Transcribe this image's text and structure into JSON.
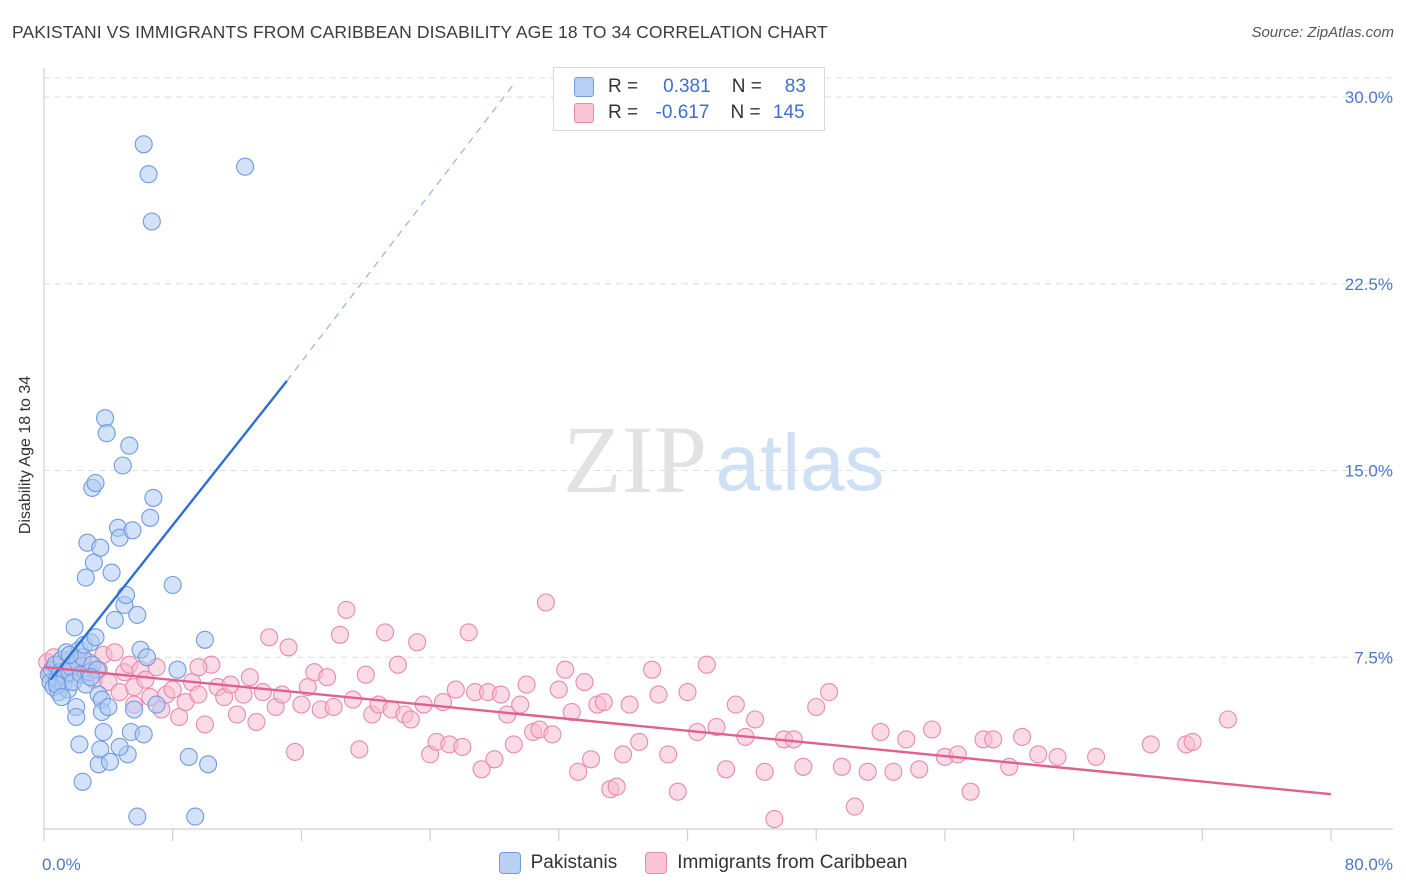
{
  "header": {
    "title": "PAKISTANI VS IMMIGRANTS FROM CARIBBEAN DISABILITY AGE 18 TO 34 CORRELATION CHART",
    "source": "Source: ZipAtlas.com"
  },
  "watermark": {
    "zip": "ZIP",
    "atlas": "atlas"
  },
  "colors": {
    "blue_fill": "#aecbf2",
    "blue_stroke": "#6f9be0",
    "blue_line": "#2f6fd1",
    "pink_fill": "#f6bcd0",
    "pink_stroke": "#e88aac",
    "pink_line": "#e0608e",
    "grid": "#dedede",
    "tick_text": "#4a77c9"
  },
  "legend": {
    "rows": [
      {
        "r_label": "R =",
        "r_value": "0.381",
        "n_label": "N =",
        "n_value": "83"
      },
      {
        "r_label": "R =",
        "r_value": "-0.617",
        "n_label": "N =",
        "n_value": "145"
      }
    ]
  },
  "chart_data": {
    "type": "scatter",
    "title": "PAKISTANI VS IMMIGRANTS FROM CARIBBEAN DISABILITY AGE 18 TO 34 CORRELATION CHART",
    "xlabel": "",
    "ylabel": "Disability Age 18 to 34",
    "xlim": [
      0,
      80
    ],
    "ylim": [
      0,
      30
    ],
    "x_tick_labels": [
      "0.0%",
      "80.0%"
    ],
    "y_ticks": [
      7.5,
      15.0,
      22.5,
      30.0
    ],
    "y_tick_labels": [
      "7.5%",
      "15.0%",
      "22.5%",
      "30.0%"
    ],
    "grid": true,
    "legend_position": "top-center",
    "series": [
      {
        "name": "Pakistanis",
        "r": 0.381,
        "n": 83,
        "trend": {
          "x": [
            0.4,
            15.1
          ],
          "y": [
            6.6,
            18.6
          ],
          "dashed_extension_to": [
            29.3,
            30.6
          ]
        },
        "points": [
          [
            0.3,
            6.8
          ],
          [
            0.4,
            6.5
          ],
          [
            0.5,
            7.0
          ],
          [
            0.6,
            6.3
          ],
          [
            0.7,
            7.2
          ],
          [
            0.8,
            6.6
          ],
          [
            0.9,
            6.1
          ],
          [
            1.0,
            6.9
          ],
          [
            1.1,
            7.4
          ],
          [
            1.2,
            6.4
          ],
          [
            1.3,
            6.7
          ],
          [
            1.4,
            7.7
          ],
          [
            1.5,
            6.2
          ],
          [
            1.6,
            6.9
          ],
          [
            1.7,
            7.1
          ],
          [
            1.8,
            6.5
          ],
          [
            1.9,
            8.7
          ],
          [
            2.0,
            5.5
          ],
          [
            2.1,
            7.3
          ],
          [
            2.2,
            7.8
          ],
          [
            2.3,
            6.8
          ],
          [
            2.4,
            7.5
          ],
          [
            2.5,
            8.0
          ],
          [
            2.6,
            6.4
          ],
          [
            2.7,
            12.1
          ],
          [
            2.8,
            6.9
          ],
          [
            2.9,
            8.1
          ],
          [
            3.0,
            7.2
          ],
          [
            3.1,
            11.3
          ],
          [
            3.2,
            8.3
          ],
          [
            3.3,
            7.0
          ],
          [
            3.4,
            6.0
          ],
          [
            3.5,
            11.9
          ],
          [
            3.6,
            5.8
          ],
          [
            3.7,
            4.5
          ],
          [
            2.0,
            5.1
          ],
          [
            2.2,
            4.0
          ],
          [
            2.6,
            10.7
          ],
          [
            3.0,
            14.3
          ],
          [
            3.2,
            14.5
          ],
          [
            3.4,
            3.2
          ],
          [
            3.5,
            3.8
          ],
          [
            3.6,
            5.3
          ],
          [
            3.8,
            17.1
          ],
          [
            3.9,
            16.5
          ],
          [
            4.0,
            5.5
          ],
          [
            4.1,
            3.3
          ],
          [
            4.2,
            10.9
          ],
          [
            4.4,
            9.0
          ],
          [
            4.6,
            12.7
          ],
          [
            4.7,
            12.3
          ],
          [
            4.9,
            15.2
          ],
          [
            5.0,
            9.6
          ],
          [
            5.1,
            10.0
          ],
          [
            5.2,
            3.6
          ],
          [
            5.3,
            16.0
          ],
          [
            5.4,
            4.5
          ],
          [
            5.5,
            12.6
          ],
          [
            5.6,
            5.4
          ],
          [
            5.8,
            9.2
          ],
          [
            6.0,
            7.8
          ],
          [
            6.2,
            4.4
          ],
          [
            6.4,
            7.5
          ],
          [
            6.6,
            13.1
          ],
          [
            6.8,
            13.9
          ],
          [
            7.0,
            5.6
          ],
          [
            5.8,
            1.1
          ],
          [
            4.7,
            3.9
          ],
          [
            6.2,
            28.1
          ],
          [
            6.5,
            26.9
          ],
          [
            6.7,
            25.0
          ],
          [
            12.5,
            27.2
          ],
          [
            8.0,
            10.4
          ],
          [
            8.3,
            7.0
          ],
          [
            9.0,
            3.5
          ],
          [
            9.4,
            1.1
          ],
          [
            10.0,
            8.2
          ],
          [
            10.2,
            3.2
          ],
          [
            2.4,
            2.5
          ],
          [
            1.6,
            7.6
          ],
          [
            0.8,
            6.4
          ],
          [
            1.1,
            5.9
          ],
          [
            2.9,
            6.7
          ]
        ]
      },
      {
        "name": "Immigrants from Caribbean",
        "r": -0.617,
        "n": 145,
        "trend": {
          "x": [
            0.0,
            80.0
          ],
          "y": [
            7.1,
            2.0
          ]
        },
        "points": [
          [
            0.2,
            7.3
          ],
          [
            0.4,
            6.9
          ],
          [
            0.6,
            7.5
          ],
          [
            0.8,
            6.6
          ],
          [
            1.0,
            7.1
          ],
          [
            1.3,
            6.8
          ],
          [
            1.6,
            7.4
          ],
          [
            1.9,
            7.0
          ],
          [
            2.2,
            6.9
          ],
          [
            2.5,
            7.2
          ],
          [
            2.8,
            7.3
          ],
          [
            3.1,
            6.6
          ],
          [
            3.4,
            7.0
          ],
          [
            3.7,
            7.6
          ],
          [
            4.0,
            6.5
          ],
          [
            4.4,
            7.7
          ],
          [
            4.7,
            6.1
          ],
          [
            5.0,
            6.9
          ],
          [
            5.3,
            7.2
          ],
          [
            5.6,
            6.3
          ],
          [
            6.0,
            7.0
          ],
          [
            6.3,
            6.6
          ],
          [
            6.6,
            5.9
          ],
          [
            7.0,
            7.1
          ],
          [
            7.3,
            5.4
          ],
          [
            7.6,
            6.0
          ],
          [
            8.0,
            6.2
          ],
          [
            8.4,
            5.1
          ],
          [
            8.8,
            5.7
          ],
          [
            9.2,
            6.5
          ],
          [
            9.6,
            6.0
          ],
          [
            10.0,
            4.8
          ],
          [
            10.4,
            7.2
          ],
          [
            10.8,
            6.3
          ],
          [
            11.2,
            5.9
          ],
          [
            11.6,
            6.4
          ],
          [
            12.0,
            5.2
          ],
          [
            12.4,
            6.0
          ],
          [
            12.8,
            6.7
          ],
          [
            13.2,
            4.9
          ],
          [
            13.6,
            6.1
          ],
          [
            14.0,
            8.3
          ],
          [
            14.4,
            5.5
          ],
          [
            14.8,
            6.0
          ],
          [
            15.2,
            7.9
          ],
          [
            15.6,
            3.7
          ],
          [
            16.0,
            5.6
          ],
          [
            16.4,
            6.3
          ],
          [
            16.8,
            6.9
          ],
          [
            17.2,
            5.4
          ],
          [
            17.6,
            6.7
          ],
          [
            18.0,
            5.5
          ],
          [
            18.4,
            8.4
          ],
          [
            18.8,
            9.4
          ],
          [
            19.2,
            5.8
          ],
          [
            19.6,
            3.8
          ],
          [
            20.0,
            6.8
          ],
          [
            20.4,
            5.2
          ],
          [
            20.8,
            5.6
          ],
          [
            21.2,
            8.5
          ],
          [
            21.6,
            5.4
          ],
          [
            22.0,
            7.2
          ],
          [
            22.4,
            5.2
          ],
          [
            22.8,
            5.0
          ],
          [
            23.2,
            8.1
          ],
          [
            23.6,
            5.6
          ],
          [
            24.0,
            3.6
          ],
          [
            24.4,
            4.1
          ],
          [
            24.8,
            5.7
          ],
          [
            25.2,
            4.0
          ],
          [
            25.6,
            6.2
          ],
          [
            26.0,
            3.9
          ],
          [
            26.4,
            8.5
          ],
          [
            26.8,
            6.1
          ],
          [
            27.2,
            3.0
          ],
          [
            27.6,
            6.1
          ],
          [
            28.0,
            3.4
          ],
          [
            28.4,
            6.0
          ],
          [
            28.8,
            5.2
          ],
          [
            29.2,
            4.0
          ],
          [
            29.6,
            5.6
          ],
          [
            30.0,
            6.4
          ],
          [
            30.4,
            4.5
          ],
          [
            30.8,
            4.6
          ],
          [
            31.2,
            9.7
          ],
          [
            31.6,
            4.4
          ],
          [
            32.0,
            6.2
          ],
          [
            32.4,
            7.0
          ],
          [
            32.8,
            5.3
          ],
          [
            33.2,
            2.9
          ],
          [
            33.6,
            6.5
          ],
          [
            34.0,
            3.4
          ],
          [
            34.4,
            5.6
          ],
          [
            34.8,
            5.7
          ],
          [
            35.2,
            2.2
          ],
          [
            35.6,
            2.3
          ],
          [
            36.0,
            3.6
          ],
          [
            36.4,
            5.6
          ],
          [
            37.0,
            4.1
          ],
          [
            37.8,
            7.0
          ],
          [
            38.2,
            6.0
          ],
          [
            38.8,
            3.6
          ],
          [
            39.4,
            2.1
          ],
          [
            40.0,
            6.1
          ],
          [
            40.6,
            4.5
          ],
          [
            41.2,
            7.2
          ],
          [
            41.8,
            4.7
          ],
          [
            42.4,
            3.0
          ],
          [
            43.0,
            5.6
          ],
          [
            43.6,
            4.3
          ],
          [
            44.2,
            5.0
          ],
          [
            44.8,
            2.9
          ],
          [
            45.4,
            1.0
          ],
          [
            46.0,
            4.2
          ],
          [
            46.6,
            4.2
          ],
          [
            47.2,
            3.1
          ],
          [
            48.0,
            5.5
          ],
          [
            48.8,
            6.1
          ],
          [
            49.6,
            3.1
          ],
          [
            50.4,
            1.5
          ],
          [
            51.2,
            2.9
          ],
          [
            52.0,
            4.5
          ],
          [
            52.8,
            2.9
          ],
          [
            53.6,
            4.2
          ],
          [
            54.4,
            3.0
          ],
          [
            55.2,
            4.6
          ],
          [
            56.0,
            3.5
          ],
          [
            56.8,
            3.6
          ],
          [
            57.6,
            2.1
          ],
          [
            58.4,
            4.2
          ],
          [
            59.0,
            4.2
          ],
          [
            60.0,
            3.1
          ],
          [
            60.8,
            4.3
          ],
          [
            61.8,
            3.6
          ],
          [
            63.0,
            3.5
          ],
          [
            65.4,
            3.5
          ],
          [
            68.8,
            4.0
          ],
          [
            71.0,
            4.0
          ],
          [
            71.4,
            4.1
          ],
          [
            73.6,
            5.0
          ],
          [
            5.6,
            5.6
          ],
          [
            9.6,
            7.1
          ]
        ]
      }
    ]
  },
  "bottom_legend": [
    {
      "label": "Pakistanis"
    },
    {
      "label": "Immigrants from Caribbean"
    }
  ]
}
